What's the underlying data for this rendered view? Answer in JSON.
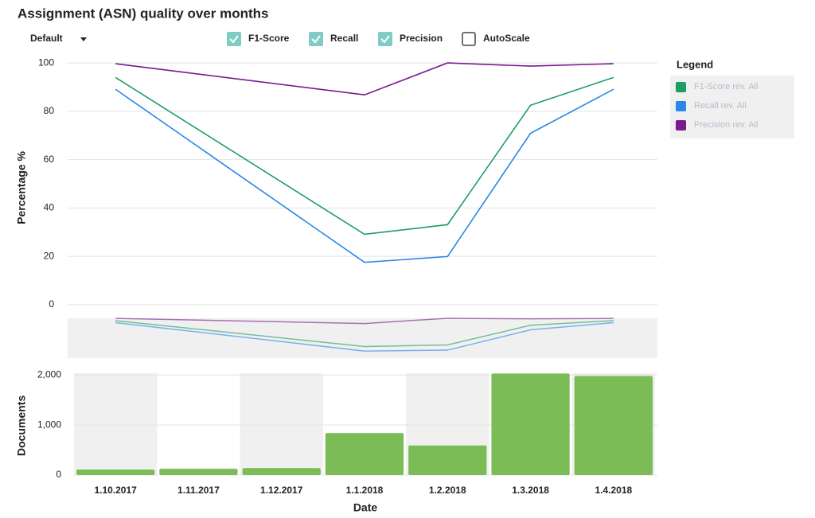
{
  "title": "Assignment (ASN) quality over months",
  "controls": {
    "dropdown": "Default",
    "checkboxes": [
      {
        "label": "F1-Score",
        "checked": true
      },
      {
        "label": "Recall",
        "checked": true
      },
      {
        "label": "Precision",
        "checked": true
      },
      {
        "label": "AutoScale",
        "checked": false
      }
    ]
  },
  "legend": {
    "title": "Legend"
  },
  "chart_data": [
    {
      "type": "line",
      "ylabel": "Percentage %",
      "x": [
        "1.10.2017",
        "1.1.2018",
        "1.2.2018",
        "1.3.2018",
        "1.4.2018"
      ],
      "series": [
        {
          "name": "F1-Score rev. All",
          "color": "#1e9e61",
          "values": [
            94.0,
            29.1,
            33.1,
            82.5,
            94.0
          ]
        },
        {
          "name": "Recall rev. All",
          "color": "#2a86e8",
          "values": [
            89.1,
            17.5,
            19.9,
            70.9,
            89.1
          ]
        },
        {
          "name": "Precision rev. All",
          "color": "#7a1a8f",
          "values": [
            99.7,
            86.8,
            100,
            98.7,
            99.7
          ]
        }
      ],
      "ylim": [
        -4,
        103
      ],
      "yticks": [
        0,
        20,
        40,
        60,
        80,
        100
      ],
      "grid": true
    },
    {
      "type": "bar",
      "ylabel": "Documents",
      "xlabel": "Date",
      "color": "#7cbc56",
      "categories": [
        "1.10.2017",
        "1.11.2017",
        "1.12.2017",
        "1.1.2018",
        "1.2.2018",
        "1.3.2018",
        "1.4.2018"
      ],
      "values": [
        110,
        125,
        140,
        840,
        590,
        2030,
        1980
      ],
      "ylim": [
        0,
        2100
      ],
      "yticks": [
        0,
        {
          "value": 1000,
          "label": "1,000"
        },
        {
          "value": 2000,
          "label": "2,000"
        }
      ],
      "grid": true
    }
  ]
}
